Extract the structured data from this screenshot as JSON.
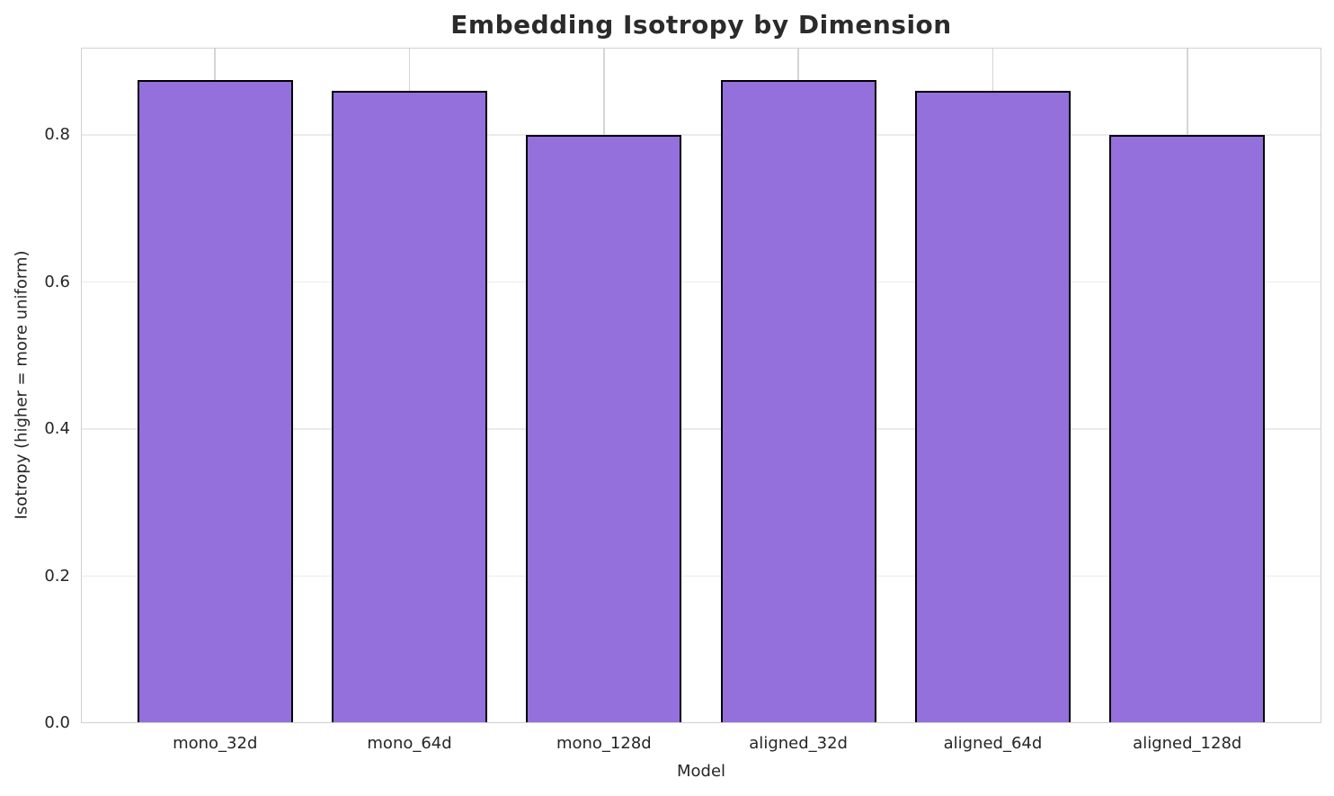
{
  "chart_data": {
    "type": "bar",
    "title": "Embedding Isotropy by Dimension",
    "xlabel": "Model",
    "ylabel": "Isotropy (higher = more uniform)",
    "categories": [
      "mono_32d",
      "mono_64d",
      "mono_128d",
      "aligned_32d",
      "aligned_64d",
      "aligned_128d"
    ],
    "values": [
      0.875,
      0.86,
      0.8,
      0.875,
      0.86,
      0.8
    ],
    "ylim": [
      0,
      0.919
    ],
    "yticks": [
      0.0,
      0.2,
      0.4,
      0.6,
      0.8
    ],
    "ytick_labels": [
      "0.0",
      "0.2",
      "0.4",
      "0.6",
      "0.8"
    ],
    "grid": true,
    "legend": null,
    "colors": {
      "bar_fill": "#9370DB",
      "bar_edge": "#000000",
      "grid_vertical": "#d5d5d5",
      "grid_horizontal": "#ebebeb",
      "spine": "#d0d0d0",
      "text": "#262626",
      "title_text": "#2b2b2b",
      "background": "#ffffff"
    }
  }
}
